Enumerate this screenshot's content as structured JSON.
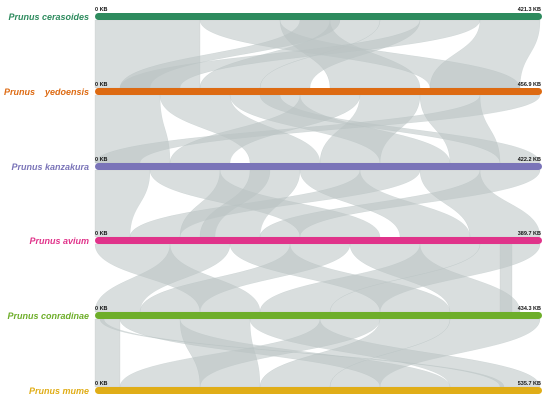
{
  "genomes": [
    {
      "name": "Prunus cerasoides",
      "start": "0 KB",
      "end": "421.3 KB",
      "color": "#2e8b5e"
    },
    {
      "name": "Prunus    yedoensis",
      "start": "0 KB",
      "end": "456.9 KB",
      "color": "#dd6a12"
    },
    {
      "name": "Prunus kanzakura",
      "start": "0 KB",
      "end": "422.2 KB",
      "color": "#7a74b8"
    },
    {
      "name": "Prunus avium",
      "start": "0 KB",
      "end": "389.7 KB",
      "color": "#e0338a"
    },
    {
      "name": "Prunus conradinae",
      "start": "0 KB",
      "end": "434.3 KB",
      "color": "#6eae2a"
    },
    {
      "name": "Prunus mume",
      "start": "0 KB",
      "end": "535.7 KB",
      "color": "#e0ad17"
    }
  ],
  "ribbon_color": "#b9c3c3"
}
